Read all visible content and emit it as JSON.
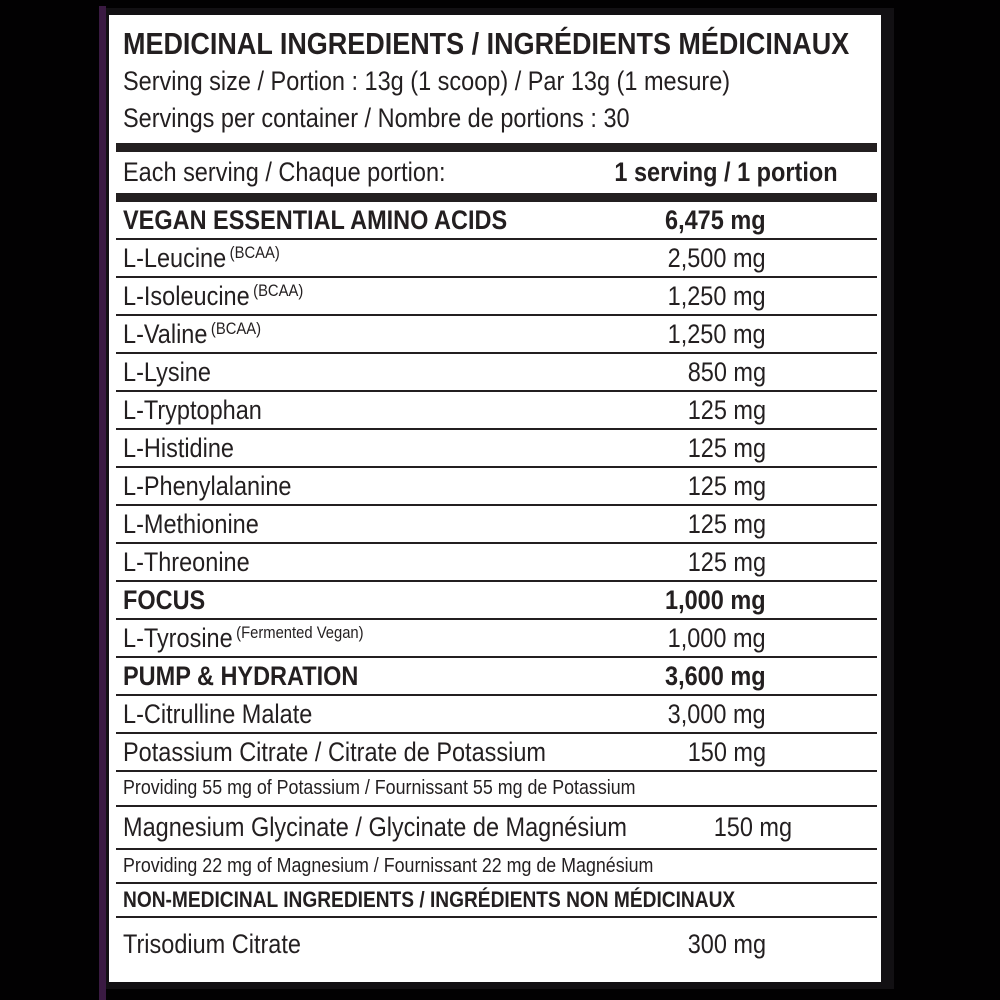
{
  "header": {
    "title": "MEDICINAL INGREDIENTS / INGRÉDIENTS MÉDICINAUX",
    "serving_size": "Serving size / Portion : 13g (1 scoop) / Par 13g (1 mesure)",
    "servings_per_container": "Servings per container / Nombre de portions : 30"
  },
  "columns": {
    "each_serving_label": "Each serving / Chaque portion:",
    "per_serving_value": "1 serving / 1 portion"
  },
  "rows": [
    {
      "label": "VEGAN ESSENTIAL AMINO ACIDS",
      "value": "6,475 mg",
      "style": "section"
    },
    {
      "label": "L-Leucine",
      "sup": "(BCAA)",
      "value": "2,500 mg",
      "style": "item"
    },
    {
      "label": "L-Isoleucine",
      "sup": "(BCAA)",
      "value": "1,250 mg",
      "style": "item"
    },
    {
      "label": "L-Valine",
      "sup": "(BCAA)",
      "value": "1,250 mg",
      "style": "item"
    },
    {
      "label": "L-Lysine",
      "value": "850 mg",
      "style": "item"
    },
    {
      "label": "L-Tryptophan",
      "value": "125 mg",
      "style": "item"
    },
    {
      "label": "L-Histidine",
      "value": "125 mg",
      "style": "item"
    },
    {
      "label": "L-Phenylalanine",
      "value": "125 mg",
      "style": "item"
    },
    {
      "label": "L-Methionine",
      "value": "125 mg",
      "style": "item"
    },
    {
      "label": "L-Threonine",
      "value": "125 mg",
      "style": "item"
    },
    {
      "label": "FOCUS",
      "value": "1,000 mg",
      "style": "section"
    },
    {
      "label": "L-Tyrosine",
      "sup": "(Fermented Vegan)",
      "value": "1,000 mg",
      "style": "item"
    },
    {
      "label": "PUMP & HYDRATION",
      "value": "3,600 mg",
      "style": "section"
    },
    {
      "label": "L-Citrulline Malate",
      "value": "3,000 mg",
      "style": "item"
    },
    {
      "label": "Potassium Citrate / Citrate de Potassium",
      "value": "150 mg",
      "style": "item"
    },
    {
      "label": "Providing 55 mg of Potassium / Fournissant 55 mg de Potassium",
      "style": "note"
    },
    {
      "label": "Magnesium Glycinate / Glycinate de Magnésium",
      "value": "150 mg",
      "style": "tall"
    },
    {
      "label": "Providing 22 mg of Magnesium / Fournissant 22 mg de Magnésium",
      "style": "note"
    },
    {
      "label": "NON-MEDICINAL INGREDIENTS / INGRÉDIENTS NON MÉDICINAUX",
      "style": "subheader"
    },
    {
      "label": "Trisodium Citrate",
      "value": "300 mg",
      "style": "last"
    }
  ],
  "colors": {
    "text": "#231f20",
    "panel_background": "#ffffff",
    "photo_background": "#020102",
    "accent_strip": "#3a1a42"
  }
}
